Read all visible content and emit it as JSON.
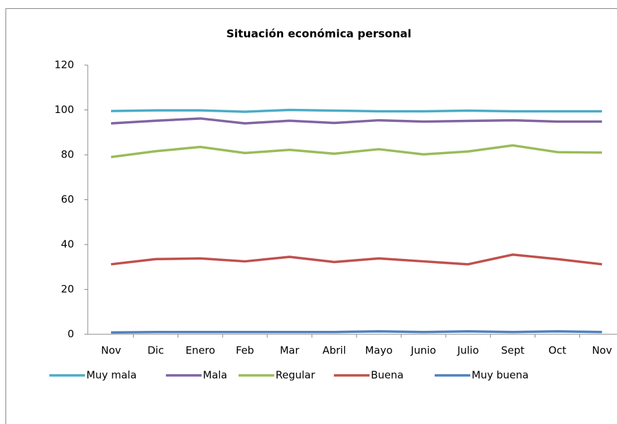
{
  "chart_data": {
    "type": "line",
    "title": "Situación económica personal",
    "categories": [
      "Nov",
      "Dic",
      "Enero",
      "Feb",
      "Mar",
      "Abril",
      "Mayo",
      "Junio",
      "Julio",
      "Sept",
      "Oct",
      "Nov"
    ],
    "series": [
      {
        "name": "Muy mala",
        "color": "#4bacc6",
        "values": [
          99.5,
          99.8,
          99.8,
          99.2,
          100,
          99.7,
          99.4,
          99.4,
          99.7,
          99.4,
          99.4,
          99.4
        ]
      },
      {
        "name": "Mala",
        "color": "#8064a2",
        "values": [
          94,
          95.2,
          96.2,
          94,
          95.2,
          94.2,
          95.4,
          94.8,
          95.1,
          95.4,
          94.8,
          94.8
        ]
      },
      {
        "name": "Regular",
        "color": "#9bbb59",
        "values": [
          79,
          81.6,
          83.5,
          80.8,
          82.2,
          80.5,
          82.5,
          80.2,
          81.5,
          84.2,
          81.2,
          81
        ]
      },
      {
        "name": "Buena",
        "color": "#c0504d",
        "values": [
          31.2,
          33.5,
          33.8,
          32.5,
          34.5,
          32.2,
          33.8,
          32.5,
          31.2,
          35.5,
          33.5,
          31.2
        ]
      },
      {
        "name": "Muy buena",
        "color": "#4f81bd",
        "values": [
          0.8,
          1,
          1,
          1,
          1,
          1,
          1.3,
          1,
          1.3,
          1,
          1.3,
          1
        ]
      }
    ],
    "ylim": [
      0,
      120
    ],
    "yticks": [
      0,
      20,
      40,
      60,
      80,
      100,
      120
    ],
    "grid": false,
    "legend": "bottom"
  }
}
